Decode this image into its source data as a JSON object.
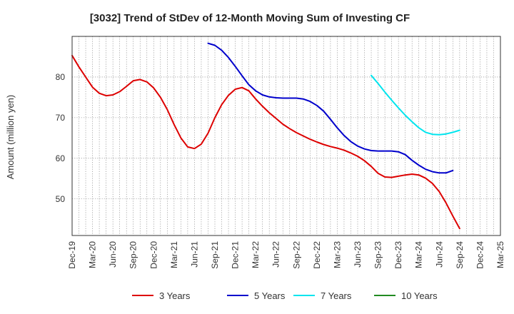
{
  "chart_data": {
    "type": "line",
    "title": "[3032]  Trend of StDev of 12-Month Moving Sum of Investing CF",
    "xlabel": "",
    "ylabel": "Amount (million yen)",
    "ylim": [
      41,
      90
    ],
    "yticks": [
      50,
      60,
      70,
      80
    ],
    "xticks": [
      "Dec-19",
      "Mar-20",
      "Jun-20",
      "Sep-20",
      "Dec-20",
      "Mar-21",
      "Jun-21",
      "Sep-21",
      "Dec-21",
      "Mar-22",
      "Jun-22",
      "Sep-22",
      "Dec-22",
      "Mar-23",
      "Jun-23",
      "Sep-23",
      "Dec-23",
      "Mar-24",
      "Jun-24",
      "Sep-24",
      "Dec-24",
      "Mar-25"
    ],
    "grid": true,
    "legend_position": "bottom",
    "series": [
      {
        "name": "3 Years",
        "color": "#dd0000",
        "values": [
          {
            "x": "Dec-19",
            "y": 85.3
          },
          {
            "x": "Jan-20",
            "y": 82.5
          },
          {
            "x": "Feb-20",
            "y": 80.0
          },
          {
            "x": "Mar-20",
            "y": 77.5
          },
          {
            "x": "Apr-20",
            "y": 76.0
          },
          {
            "x": "May-20",
            "y": 75.4
          },
          {
            "x": "Jun-20",
            "y": 75.6
          },
          {
            "x": "Jul-20",
            "y": 76.4
          },
          {
            "x": "Aug-20",
            "y": 77.7
          },
          {
            "x": "Sep-20",
            "y": 79.1
          },
          {
            "x": "Oct-20",
            "y": 79.4
          },
          {
            "x": "Nov-20",
            "y": 78.8
          },
          {
            "x": "Dec-20",
            "y": 77.3
          },
          {
            "x": "Jan-21",
            "y": 75.0
          },
          {
            "x": "Feb-21",
            "y": 72.0
          },
          {
            "x": "Mar-21",
            "y": 68.3
          },
          {
            "x": "Apr-21",
            "y": 65.0
          },
          {
            "x": "May-21",
            "y": 62.8
          },
          {
            "x": "Jun-21",
            "y": 62.4
          },
          {
            "x": "Jul-21",
            "y": 63.5
          },
          {
            "x": "Aug-21",
            "y": 66.2
          },
          {
            "x": "Sep-21",
            "y": 70.0
          },
          {
            "x": "Oct-21",
            "y": 73.2
          },
          {
            "x": "Nov-21",
            "y": 75.5
          },
          {
            "x": "Dec-21",
            "y": 77.0
          },
          {
            "x": "Jan-22",
            "y": 77.4
          },
          {
            "x": "Feb-22",
            "y": 76.6
          },
          {
            "x": "Mar-22",
            "y": 74.6
          },
          {
            "x": "Apr-22",
            "y": 72.8
          },
          {
            "x": "May-22",
            "y": 71.2
          },
          {
            "x": "Jun-22",
            "y": 69.8
          },
          {
            "x": "Jul-22",
            "y": 68.4
          },
          {
            "x": "Aug-22",
            "y": 67.3
          },
          {
            "x": "Sep-22",
            "y": 66.3
          },
          {
            "x": "Oct-22",
            "y": 65.5
          },
          {
            "x": "Nov-22",
            "y": 64.7
          },
          {
            "x": "Dec-22",
            "y": 64.0
          },
          {
            "x": "Jan-23",
            "y": 63.4
          },
          {
            "x": "Feb-23",
            "y": 62.9
          },
          {
            "x": "Mar-23",
            "y": 62.5
          },
          {
            "x": "Apr-23",
            "y": 62.0
          },
          {
            "x": "May-23",
            "y": 61.3
          },
          {
            "x": "Jun-23",
            "y": 60.5
          },
          {
            "x": "Jul-23",
            "y": 59.4
          },
          {
            "x": "Aug-23",
            "y": 58.0
          },
          {
            "x": "Sep-23",
            "y": 56.3
          },
          {
            "x": "Oct-23",
            "y": 55.4
          },
          {
            "x": "Nov-23",
            "y": 55.3
          },
          {
            "x": "Dec-23",
            "y": 55.6
          },
          {
            "x": "Jan-24",
            "y": 55.9
          },
          {
            "x": "Feb-24",
            "y": 56.1
          },
          {
            "x": "Mar-24",
            "y": 55.9
          },
          {
            "x": "Apr-24",
            "y": 55.1
          },
          {
            "x": "May-24",
            "y": 53.8
          },
          {
            "x": "Jun-24",
            "y": 51.8
          },
          {
            "x": "Jul-24",
            "y": 49.0
          },
          {
            "x": "Aug-24",
            "y": 45.8
          },
          {
            "x": "Sep-24",
            "y": 42.7
          }
        ]
      },
      {
        "name": "5 Years",
        "color": "#0000cc",
        "values": [
          {
            "x": "Aug-21",
            "y": 88.3
          },
          {
            "x": "Sep-21",
            "y": 87.8
          },
          {
            "x": "Oct-21",
            "y": 86.6
          },
          {
            "x": "Nov-21",
            "y": 84.8
          },
          {
            "x": "Dec-21",
            "y": 82.6
          },
          {
            "x": "Jan-22",
            "y": 80.3
          },
          {
            "x": "Feb-22",
            "y": 78.1
          },
          {
            "x": "Mar-22",
            "y": 76.6
          },
          {
            "x": "Apr-22",
            "y": 75.6
          },
          {
            "x": "May-22",
            "y": 75.1
          },
          {
            "x": "Jun-22",
            "y": 74.9
          },
          {
            "x": "Jul-22",
            "y": 74.8
          },
          {
            "x": "Aug-22",
            "y": 74.8
          },
          {
            "x": "Sep-22",
            "y": 74.8
          },
          {
            "x": "Oct-22",
            "y": 74.6
          },
          {
            "x": "Nov-22",
            "y": 74.0
          },
          {
            "x": "Dec-22",
            "y": 73.0
          },
          {
            "x": "Jan-23",
            "y": 71.6
          },
          {
            "x": "Feb-23",
            "y": 69.6
          },
          {
            "x": "Mar-23",
            "y": 67.5
          },
          {
            "x": "Apr-23",
            "y": 65.6
          },
          {
            "x": "May-23",
            "y": 64.1
          },
          {
            "x": "Jun-23",
            "y": 63.0
          },
          {
            "x": "Jul-23",
            "y": 62.3
          },
          {
            "x": "Aug-23",
            "y": 61.9
          },
          {
            "x": "Sep-23",
            "y": 61.8
          },
          {
            "x": "Oct-23",
            "y": 61.8
          },
          {
            "x": "Nov-23",
            "y": 61.8
          },
          {
            "x": "Dec-23",
            "y": 61.6
          },
          {
            "x": "Jan-24",
            "y": 60.9
          },
          {
            "x": "Feb-24",
            "y": 59.5
          },
          {
            "x": "Mar-24",
            "y": 58.3
          },
          {
            "x": "Apr-24",
            "y": 57.3
          },
          {
            "x": "May-24",
            "y": 56.7
          },
          {
            "x": "Jun-24",
            "y": 56.4
          },
          {
            "x": "Jul-24",
            "y": 56.4
          },
          {
            "x": "Aug-24",
            "y": 57.0
          }
        ]
      },
      {
        "name": "7 Years",
        "color": "#00e5ee",
        "values": [
          {
            "x": "Aug-23",
            "y": 80.4
          },
          {
            "x": "Sep-23",
            "y": 78.4
          },
          {
            "x": "Oct-23",
            "y": 76.3
          },
          {
            "x": "Nov-23",
            "y": 74.3
          },
          {
            "x": "Dec-23",
            "y": 72.4
          },
          {
            "x": "Jan-24",
            "y": 70.6
          },
          {
            "x": "Feb-24",
            "y": 69.0
          },
          {
            "x": "Mar-24",
            "y": 67.5
          },
          {
            "x": "Apr-24",
            "y": 66.4
          },
          {
            "x": "May-24",
            "y": 65.9
          },
          {
            "x": "Jun-24",
            "y": 65.8
          },
          {
            "x": "Jul-24",
            "y": 66.0
          },
          {
            "x": "Aug-24",
            "y": 66.4
          },
          {
            "x": "Sep-24",
            "y": 66.9
          }
        ]
      },
      {
        "name": "10 Years",
        "color": "#228b22",
        "values": []
      }
    ]
  }
}
